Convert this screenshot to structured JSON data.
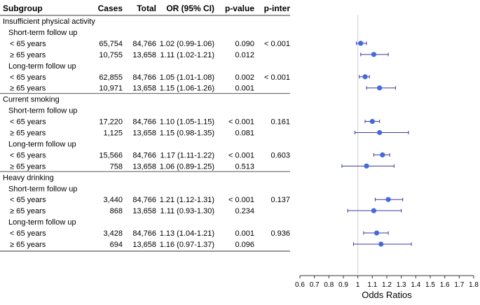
{
  "chart_data": {
    "type": "forest",
    "xlabel": "Odds Ratios",
    "xlim": [
      0.6,
      1.8
    ],
    "x_ticks": [
      "0.6",
      "0.7",
      "0.8",
      "0.9",
      "1",
      "1.1",
      "1.2",
      "1.3",
      "1.4",
      "1.5",
      "1.6",
      "1.7",
      "1.8"
    ],
    "reference_line": 1,
    "marker_color": "#4169e1",
    "headers": {
      "subgroup": "Subgroup",
      "cases": "Cases",
      "total": "Total",
      "or_ci": "OR (95% CI)",
      "p_value": "p-value",
      "p_inter": "p-inter"
    },
    "rows": [
      {
        "kind": "section",
        "label": "Insufficient physical activity"
      },
      {
        "kind": "subsection",
        "label": "Short-term follow up"
      },
      {
        "kind": "data",
        "label": "< 65 years",
        "cases": "65,754",
        "total": "84,766",
        "or_text": "1.02 (0.99-1.06)",
        "p": "0.090",
        "pinter": "< 0.001",
        "or": 1.02,
        "lo": 0.99,
        "hi": 1.06
      },
      {
        "kind": "data",
        "label": "≥ 65 years",
        "cases": "10,755",
        "total": "13,658",
        "or_text": "1.11 (1.02-1.21)",
        "p": "0.012",
        "pinter": "",
        "or": 1.11,
        "lo": 1.02,
        "hi": 1.21
      },
      {
        "kind": "subsection",
        "label": "Long-term follow up"
      },
      {
        "kind": "data",
        "label": "< 65 years",
        "cases": "62,855",
        "total": "84,766",
        "or_text": "1.05 (1.01-1.08)",
        "p": "0.002",
        "pinter": "< 0.001",
        "or": 1.05,
        "lo": 1.01,
        "hi": 1.08
      },
      {
        "kind": "data",
        "label": "≥ 65 years",
        "cases": "10,971",
        "total": "13,658",
        "or_text": "1.15 (1.06-1.26)",
        "p": "0.001",
        "pinter": "",
        "or": 1.15,
        "lo": 1.06,
        "hi": 1.26
      },
      {
        "kind": "section",
        "label": "Current smoking"
      },
      {
        "kind": "subsection",
        "label": "Short-term follow up"
      },
      {
        "kind": "data",
        "label": "< 65 years",
        "cases": "17,220",
        "total": "84,766",
        "or_text": "1.10 (1.05-1.15)",
        "p": "< 0.001",
        "pinter": "0.161",
        "or": 1.1,
        "lo": 1.05,
        "hi": 1.15
      },
      {
        "kind": "data",
        "label": "≥ 65 years",
        "cases": "1,125",
        "total": "13,658",
        "or_text": "1.15 (0.98-1.35)",
        "p": "0.081",
        "pinter": "",
        "or": 1.15,
        "lo": 0.98,
        "hi": 1.35
      },
      {
        "kind": "subsection",
        "label": "Long-term follow up"
      },
      {
        "kind": "data",
        "label": "< 65 years",
        "cases": "15,566",
        "total": "84,766",
        "or_text": "1.17 (1.11-1.22)",
        "p": "< 0.001",
        "pinter": "0.603",
        "or": 1.17,
        "lo": 1.11,
        "hi": 1.22
      },
      {
        "kind": "data",
        "label": "≥ 65 years",
        "cases": "758",
        "total": "13,658",
        "or_text": "1.06 (0.89-1.25)",
        "p": "0.513",
        "pinter": "",
        "or": 1.06,
        "lo": 0.89,
        "hi": 1.25
      },
      {
        "kind": "section",
        "label": "Heavy drinking"
      },
      {
        "kind": "subsection",
        "label": "Short-term follow up"
      },
      {
        "kind": "data",
        "label": "< 65 years",
        "cases": "3,440",
        "total": "84,766",
        "or_text": "1.21 (1.12-1.31)",
        "p": "< 0.001",
        "pinter": "0.137",
        "or": 1.21,
        "lo": 1.12,
        "hi": 1.31
      },
      {
        "kind": "data",
        "label": "≥ 65 years",
        "cases": "868",
        "total": "13,658",
        "or_text": "1.11 (0.93-1.30)",
        "p": "0.234",
        "pinter": "",
        "or": 1.11,
        "lo": 0.93,
        "hi": 1.3
      },
      {
        "kind": "subsection",
        "label": "Long-term follow up"
      },
      {
        "kind": "data",
        "label": "< 65 years",
        "cases": "3,428",
        "total": "84,766",
        "or_text": "1.13 (1.04-1.21)",
        "p": "0.001",
        "pinter": "0.936",
        "or": 1.13,
        "lo": 1.04,
        "hi": 1.21
      },
      {
        "kind": "data",
        "label": "≥ 65 years",
        "cases": "694",
        "total": "13,658",
        "or_text": "1.16 (0.97-1.37)",
        "p": "0.096",
        "pinter": "",
        "or": 1.16,
        "lo": 0.97,
        "hi": 1.37
      }
    ]
  }
}
